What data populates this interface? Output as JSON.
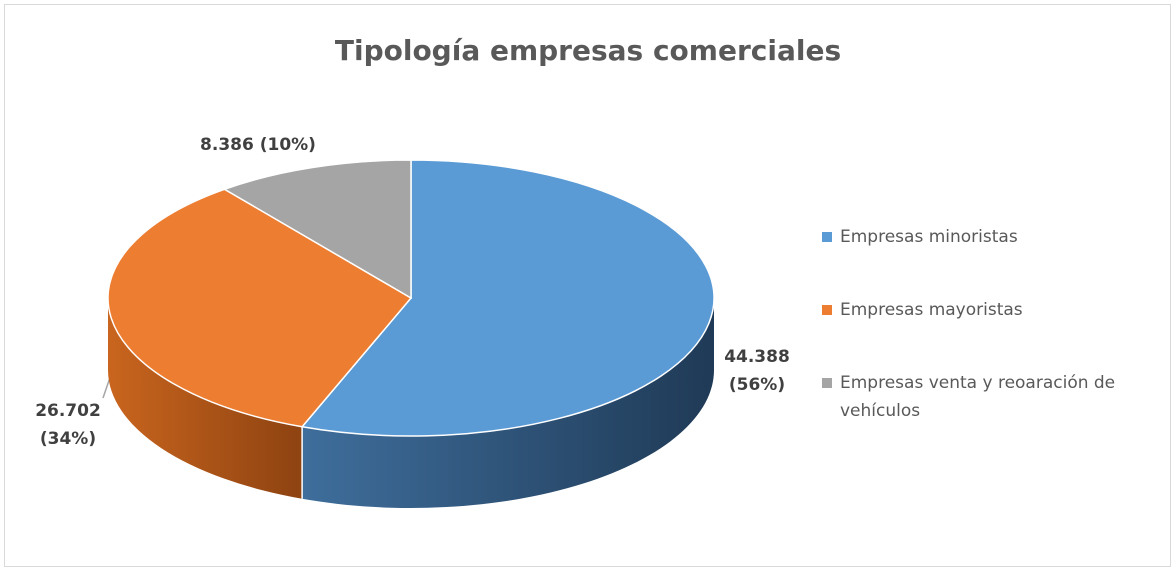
{
  "chart_data": {
    "type": "pie3d",
    "title": "Tipología empresas comerciales",
    "categories": [
      "Empresas minoristas",
      "Empresas mayoristas",
      "Empresas venta y reoaración de vehículos"
    ],
    "values": [
      44388,
      26702,
      8386
    ],
    "value_labels": [
      "44.388 (56%)",
      "26.702 (34%)",
      "8.386 (10%)"
    ],
    "colors": [
      "#5b9bd5",
      "#ed7d31",
      "#a5a5a5"
    ],
    "legend": "right"
  }
}
